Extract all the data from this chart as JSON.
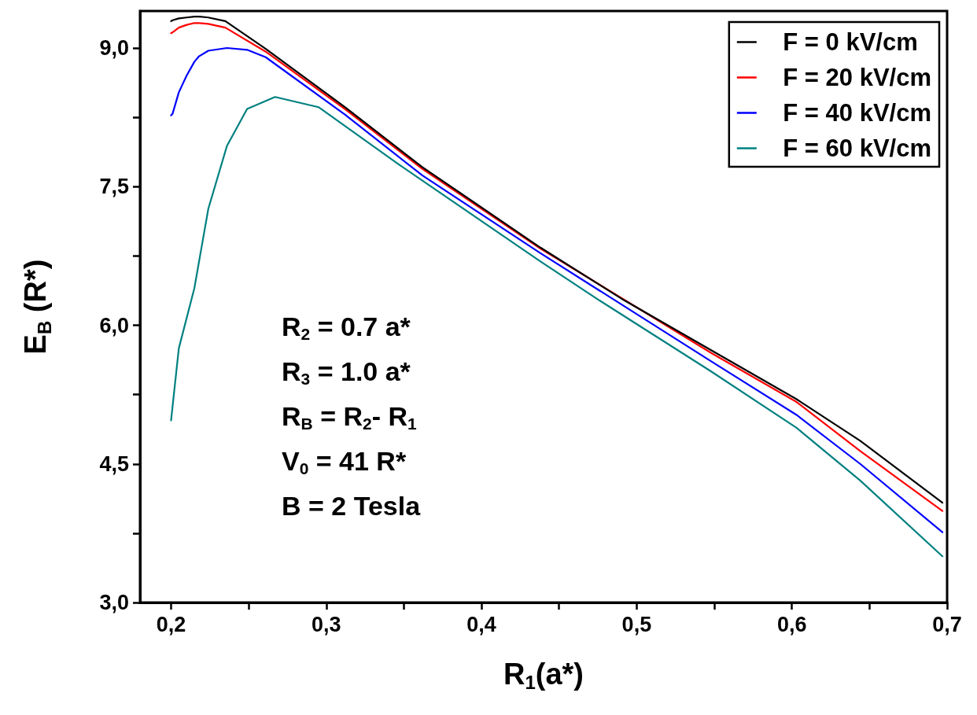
{
  "chart_data": {
    "type": "line",
    "xlabel": "R$_{1}$(a*)",
    "ylabel": "E$_{B}$ (R*)",
    "x": [
      0.2,
      0.201,
      0.205,
      0.21,
      0.215,
      0.218,
      0.224,
      0.235,
      0.236,
      0.249,
      0.261,
      0.267,
      0.295,
      0.312,
      0.345,
      0.362,
      0.438,
      0.474,
      0.49,
      0.548,
      0.603,
      0.644,
      0.697
    ],
    "series": [
      {
        "name": "F = 0 kV/cm",
        "color": "#000000",
        "values": [
          9.29,
          9.3,
          9.32,
          9.33,
          9.34,
          9.34,
          9.33,
          9.29,
          null,
          null,
          8.99,
          null,
          null,
          8.36,
          null,
          7.71,
          6.84,
          null,
          6.29,
          5.73,
          5.2,
          4.75,
          4.08
        ]
      },
      {
        "name": "F = 20 kV/cm",
        "color": "#ff0000",
        "values": [
          9.16,
          9.17,
          9.22,
          9.25,
          9.27,
          9.27,
          9.26,
          9.22,
          null,
          null,
          8.96,
          null,
          null,
          8.34,
          null,
          7.69,
          6.83,
          null,
          null,
          5.7,
          5.17,
          4.64,
          3.99
        ]
      },
      {
        "name": "F = 40 kV/cm",
        "color": "#0000ff",
        "values": [
          8.27,
          8.29,
          8.52,
          8.7,
          8.85,
          8.91,
          8.97,
          null,
          9.0,
          8.98,
          8.9,
          null,
          null,
          8.28,
          null,
          7.62,
          6.78,
          null,
          null,
          5.61,
          5.03,
          4.5,
          3.76
        ]
      },
      {
        "name": "F = 60 kV/cm",
        "color": "#008080",
        "values": [
          4.97,
          null,
          5.75,
          null,
          6.4,
          null,
          7.26,
          null,
          7.94,
          8.34,
          null,
          8.47,
          8.36,
          null,
          7.76,
          null,
          6.69,
          6.29,
          null,
          5.5,
          4.89,
          4.32,
          3.5
        ]
      }
    ],
    "xlim": [
      0.18,
      0.7
    ],
    "xticks": [
      {
        "value": 0.2,
        "label": "0,2"
      },
      {
        "value": 0.25,
        "label": null
      },
      {
        "value": 0.3,
        "label": "0,3"
      },
      {
        "value": 0.35,
        "label": null
      },
      {
        "value": 0.4,
        "label": "0,4"
      },
      {
        "value": 0.45,
        "label": null
      },
      {
        "value": 0.5,
        "label": "0,5"
      },
      {
        "value": 0.55,
        "label": null
      },
      {
        "value": 0.6,
        "label": "0,6"
      },
      {
        "value": 0.65,
        "label": null
      },
      {
        "value": 0.7,
        "label": "0,7"
      }
    ],
    "ylim": [
      3,
      9.4
    ],
    "yticks": [
      {
        "value": 3,
        "label": "3,0"
      },
      {
        "value": 3.75,
        "label": null
      },
      {
        "value": 4.5,
        "label": "4,5"
      },
      {
        "value": 5.25,
        "label": null
      },
      {
        "value": 6,
        "label": "6,0"
      },
      {
        "value": 6.75,
        "label": null
      },
      {
        "value": 7.5,
        "label": "7,5"
      },
      {
        "value": 8.25,
        "label": null
      },
      {
        "value": 9,
        "label": "9,0"
      }
    ],
    "annotations": [
      "R$_{2}$ = 0.7 a*",
      "R$_{3}$ = 1.0 a*",
      "R$_{B}$ = R$_{2}$- R$_{1}$",
      "V$_{0}$ = 41 R*",
      "B = 2 Tesla"
    ],
    "legend": "top right",
    "grid": false,
    "marker": "none",
    "line_style": "solid"
  }
}
